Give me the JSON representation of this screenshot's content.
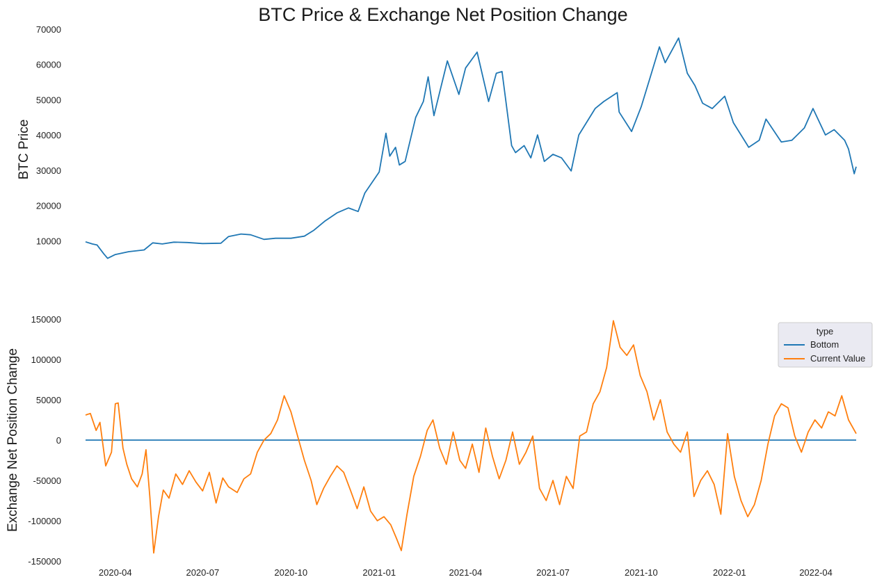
{
  "chart_data": [
    {
      "type": "line",
      "title": "BTC Price & Exchange Net Position Change",
      "ylabel": "BTC  Price",
      "xlabel": "",
      "xlim": [
        "2020-03-01",
        "2022-05-13"
      ],
      "ylim": [
        0,
        70000
      ],
      "yticks": [
        10000,
        20000,
        30000,
        40000,
        50000,
        60000,
        70000
      ],
      "grid": false,
      "colors": {
        "price": "#1f77b4"
      },
      "series": [
        {
          "values": [
            [
              "2020-03-01",
              9700
            ],
            [
              "2020-03-08",
              9100
            ],
            [
              "2020-03-13",
              8800
            ],
            [
              "2020-03-20",
              6300
            ],
            [
              "2020-03-24",
              5000
            ],
            [
              "2020-04-01",
              6100
            ],
            [
              "2020-04-15",
              6900
            ],
            [
              "2020-05-01",
              7400
            ],
            [
              "2020-05-10",
              9400
            ],
            [
              "2020-05-20",
              9100
            ],
            [
              "2020-06-01",
              9600
            ],
            [
              "2020-06-15",
              9500
            ],
            [
              "2020-07-01",
              9200
            ],
            [
              "2020-07-20",
              9300
            ],
            [
              "2020-07-28",
              11200
            ],
            [
              "2020-08-10",
              11900
            ],
            [
              "2020-08-20",
              11700
            ],
            [
              "2020-09-03",
              10400
            ],
            [
              "2020-09-15",
              10700
            ],
            [
              "2020-10-01",
              10700
            ],
            [
              "2020-10-15",
              11300
            ],
            [
              "2020-10-25",
              13000
            ],
            [
              "2020-11-05",
              15500
            ],
            [
              "2020-11-18",
              17900
            ],
            [
              "2020-11-30",
              19300
            ],
            [
              "2020-12-10",
              18300
            ],
            [
              "2020-12-17",
              23500
            ],
            [
              "2020-12-27",
              27500
            ],
            [
              "2021-01-01",
              29500
            ],
            [
              "2021-01-08",
              40500
            ],
            [
              "2021-01-12",
              34000
            ],
            [
              "2021-01-18",
              36500
            ],
            [
              "2021-01-22",
              31500
            ],
            [
              "2021-01-28",
              32500
            ],
            [
              "2021-02-08",
              45000
            ],
            [
              "2021-02-16",
              49500
            ],
            [
              "2021-02-21",
              56500
            ],
            [
              "2021-02-27",
              45500
            ],
            [
              "2021-03-13",
              61000
            ],
            [
              "2021-03-25",
              51500
            ],
            [
              "2021-04-01",
              59000
            ],
            [
              "2021-04-13",
              63500
            ],
            [
              "2021-04-25",
              49500
            ],
            [
              "2021-05-03",
              57500
            ],
            [
              "2021-05-09",
              58000
            ],
            [
              "2021-05-13",
              49500
            ],
            [
              "2021-05-19",
              37000
            ],
            [
              "2021-05-23",
              35000
            ],
            [
              "2021-06-01",
              37000
            ],
            [
              "2021-06-08",
              33500
            ],
            [
              "2021-06-15",
              40000
            ],
            [
              "2021-06-22",
              32500
            ],
            [
              "2021-07-01",
              34500
            ],
            [
              "2021-07-10",
              33500
            ],
            [
              "2021-07-20",
              29800
            ],
            [
              "2021-07-28",
              40000
            ],
            [
              "2021-08-14",
              47500
            ],
            [
              "2021-08-23",
              49500
            ],
            [
              "2021-09-06",
              52000
            ],
            [
              "2021-09-08",
              46500
            ],
            [
              "2021-09-21",
              41000
            ],
            [
              "2021-10-01",
              48000
            ],
            [
              "2021-10-10",
              56000
            ],
            [
              "2021-10-20",
              65000
            ],
            [
              "2021-10-26",
              60500
            ],
            [
              "2021-11-09",
              67500
            ],
            [
              "2021-11-18",
              57500
            ],
            [
              "2021-11-26",
              54000
            ],
            [
              "2021-12-04",
              49000
            ],
            [
              "2021-12-14",
              47500
            ],
            [
              "2021-12-27",
              51000
            ],
            [
              "2022-01-05",
              43500
            ],
            [
              "2022-01-21",
              36500
            ],
            [
              "2022-02-01",
              38500
            ],
            [
              "2022-02-08",
              44500
            ],
            [
              "2022-02-24",
              38000
            ],
            [
              "2022-03-07",
              38500
            ],
            [
              "2022-03-20",
              42000
            ],
            [
              "2022-03-29",
              47500
            ],
            [
              "2022-04-11",
              40000
            ],
            [
              "2022-04-20",
              41500
            ],
            [
              "2022-05-01",
              38500
            ],
            [
              "2022-05-05",
              36000
            ],
            [
              "2022-05-11",
              29000
            ],
            [
              "2022-05-13",
              31000
            ]
          ]
        }
      ]
    },
    {
      "type": "line",
      "ylabel": "Exchange Net Position Change",
      "xlabel": "",
      "xlim": [
        "2020-03-01",
        "2022-05-13"
      ],
      "ylim": [
        -150000,
        150000
      ],
      "yticks": [
        -150000,
        -100000,
        -50000,
        0,
        50000,
        100000,
        150000
      ],
      "xticks": [
        "2020-04",
        "2020-07",
        "2020-10",
        "2021-01",
        "2021-04",
        "2021-07",
        "2021-10",
        "2022-01",
        "2022-04"
      ],
      "grid": false,
      "legend": {
        "title": "type",
        "placement": "upper-right"
      },
      "series": [
        {
          "name": "Bottom",
          "color": "#1f77b4",
          "values": [
            [
              "2020-03-01",
              0
            ],
            [
              "2022-05-13",
              0
            ]
          ]
        },
        {
          "name": "Current Value",
          "color": "#ff7f0e",
          "values": [
            [
              "2020-03-01",
              31000
            ],
            [
              "2020-03-06",
              33000
            ],
            [
              "2020-03-12",
              12000
            ],
            [
              "2020-03-16",
              22000
            ],
            [
              "2020-03-22",
              -32000
            ],
            [
              "2020-03-28",
              -15000
            ],
            [
              "2020-04-01",
              45000
            ],
            [
              "2020-04-04",
              46000
            ],
            [
              "2020-04-09",
              -10000
            ],
            [
              "2020-04-13",
              -30000
            ],
            [
              "2020-04-18",
              -48000
            ],
            [
              "2020-04-24",
              -58000
            ],
            [
              "2020-04-29",
              -42000
            ],
            [
              "2020-05-03",
              -12000
            ],
            [
              "2020-05-07",
              -70000
            ],
            [
              "2020-05-11",
              -140000
            ],
            [
              "2020-05-16",
              -95000
            ],
            [
              "2020-05-21",
              -62000
            ],
            [
              "2020-05-27",
              -72000
            ],
            [
              "2020-06-03",
              -42000
            ],
            [
              "2020-06-10",
              -55000
            ],
            [
              "2020-06-17",
              -38000
            ],
            [
              "2020-06-24",
              -52000
            ],
            [
              "2020-07-01",
              -63000
            ],
            [
              "2020-07-08",
              -40000
            ],
            [
              "2020-07-15",
              -78000
            ],
            [
              "2020-07-22",
              -47000
            ],
            [
              "2020-07-28",
              -58000
            ],
            [
              "2020-08-06",
              -65000
            ],
            [
              "2020-08-13",
              -48000
            ],
            [
              "2020-08-20",
              -42000
            ],
            [
              "2020-08-27",
              -15000
            ],
            [
              "2020-09-03",
              0
            ],
            [
              "2020-09-10",
              8000
            ],
            [
              "2020-09-17",
              25000
            ],
            [
              "2020-09-24",
              55000
            ],
            [
              "2020-10-01",
              35000
            ],
            [
              "2020-10-08",
              5000
            ],
            [
              "2020-10-15",
              -25000
            ],
            [
              "2020-10-22",
              -50000
            ],
            [
              "2020-10-28",
              -80000
            ],
            [
              "2020-11-04",
              -60000
            ],
            [
              "2020-11-11",
              -45000
            ],
            [
              "2020-11-18",
              -32000
            ],
            [
              "2020-11-25",
              -40000
            ],
            [
              "2020-12-02",
              -62000
            ],
            [
              "2020-12-09",
              -85000
            ],
            [
              "2020-12-16",
              -58000
            ],
            [
              "2020-12-23",
              -88000
            ],
            [
              "2020-12-30",
              -100000
            ],
            [
              "2021-01-06",
              -95000
            ],
            [
              "2021-01-13",
              -105000
            ],
            [
              "2021-01-19",
              -122000
            ],
            [
              "2021-01-24",
              -137000
            ],
            [
              "2021-01-30",
              -92000
            ],
            [
              "2021-02-06",
              -45000
            ],
            [
              "2021-02-13",
              -20000
            ],
            [
              "2021-02-20",
              12000
            ],
            [
              "2021-02-26",
              25000
            ],
            [
              "2021-03-05",
              -10000
            ],
            [
              "2021-03-12",
              -30000
            ],
            [
              "2021-03-19",
              10000
            ],
            [
              "2021-03-26",
              -25000
            ],
            [
              "2021-04-01",
              -35000
            ],
            [
              "2021-04-08",
              -5000
            ],
            [
              "2021-04-15",
              -40000
            ],
            [
              "2021-04-22",
              15000
            ],
            [
              "2021-04-29",
              -20000
            ],
            [
              "2021-05-06",
              -48000
            ],
            [
              "2021-05-13",
              -25000
            ],
            [
              "2021-05-20",
              10000
            ],
            [
              "2021-05-27",
              -30000
            ],
            [
              "2021-06-03",
              -15000
            ],
            [
              "2021-06-10",
              5000
            ],
            [
              "2021-06-17",
              -60000
            ],
            [
              "2021-06-24",
              -75000
            ],
            [
              "2021-07-01",
              -50000
            ],
            [
              "2021-07-08",
              -80000
            ],
            [
              "2021-07-15",
              -45000
            ],
            [
              "2021-07-22",
              -60000
            ],
            [
              "2021-07-29",
              5000
            ],
            [
              "2021-08-05",
              10000
            ],
            [
              "2021-08-12",
              45000
            ],
            [
              "2021-08-19",
              60000
            ],
            [
              "2021-08-26",
              90000
            ],
            [
              "2021-09-02",
              148000
            ],
            [
              "2021-09-09",
              115000
            ],
            [
              "2021-09-16",
              105000
            ],
            [
              "2021-09-23",
              118000
            ],
            [
              "2021-09-30",
              80000
            ],
            [
              "2021-10-07",
              60000
            ],
            [
              "2021-10-14",
              25000
            ],
            [
              "2021-10-21",
              50000
            ],
            [
              "2021-10-28",
              10000
            ],
            [
              "2021-11-04",
              -5000
            ],
            [
              "2021-11-11",
              -15000
            ],
            [
              "2021-11-18",
              10000
            ],
            [
              "2021-11-25",
              -70000
            ],
            [
              "2021-12-02",
              -50000
            ],
            [
              "2021-12-09",
              -38000
            ],
            [
              "2021-12-16",
              -55000
            ],
            [
              "2021-12-23",
              -92000
            ],
            [
              "2021-12-30",
              8000
            ],
            [
              "2022-01-06",
              -45000
            ],
            [
              "2022-01-13",
              -75000
            ],
            [
              "2022-01-20",
              -95000
            ],
            [
              "2022-01-27",
              -80000
            ],
            [
              "2022-02-03",
              -50000
            ],
            [
              "2022-02-10",
              -5000
            ],
            [
              "2022-02-17",
              30000
            ],
            [
              "2022-02-24",
              45000
            ],
            [
              "2022-03-03",
              40000
            ],
            [
              "2022-03-10",
              5000
            ],
            [
              "2022-03-17",
              -15000
            ],
            [
              "2022-03-24",
              10000
            ],
            [
              "2022-03-31",
              25000
            ],
            [
              "2022-04-07",
              15000
            ],
            [
              "2022-04-14",
              35000
            ],
            [
              "2022-04-21",
              30000
            ],
            [
              "2022-04-28",
              55000
            ],
            [
              "2022-05-05",
              25000
            ],
            [
              "2022-05-13",
              8000
            ]
          ]
        }
      ]
    }
  ]
}
